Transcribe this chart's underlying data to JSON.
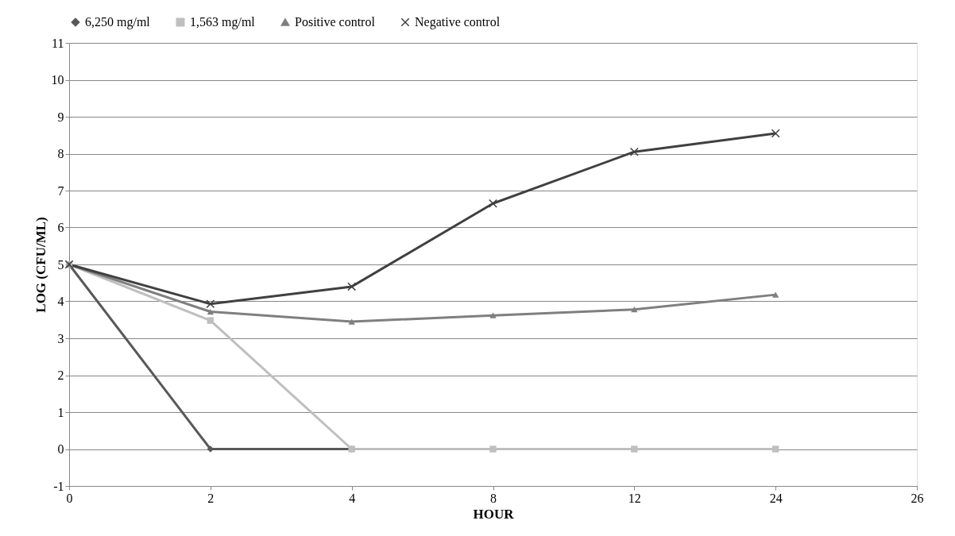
{
  "chart_data": {
    "type": "line",
    "xlabel": "HOUR",
    "ylabel": "LOG (CFU/ML)",
    "categories": [
      "0",
      "2",
      "4",
      "8",
      "12",
      "24",
      "26"
    ],
    "series": [
      {
        "name": "6,250 mg/ml",
        "color": "#595959",
        "marker": "diamond",
        "values": [
          5,
          0,
          0,
          null,
          null,
          null,
          null
        ]
      },
      {
        "name": "1,563 mg/ml",
        "color": "#bfbfbf",
        "marker": "square",
        "values": [
          5,
          3.48,
          0,
          0,
          0,
          0,
          null
        ]
      },
      {
        "name": "Positive control",
        "color": "#7f7f7f",
        "marker": "triangle",
        "values": [
          5,
          3.72,
          3.45,
          3.62,
          3.78,
          4.18,
          null
        ]
      },
      {
        "name": "Negative control",
        "color": "#404040",
        "marker": "cross",
        "values": [
          5,
          3.93,
          4.4,
          6.65,
          8.05,
          8.55,
          null
        ]
      }
    ],
    "ylim": [
      -1,
      11
    ],
    "yticks": [
      -1,
      0,
      1,
      2,
      3,
      4,
      5,
      6,
      7,
      8,
      9,
      10,
      11
    ],
    "grid": "y",
    "legend": "top",
    "line_style": "solid"
  }
}
